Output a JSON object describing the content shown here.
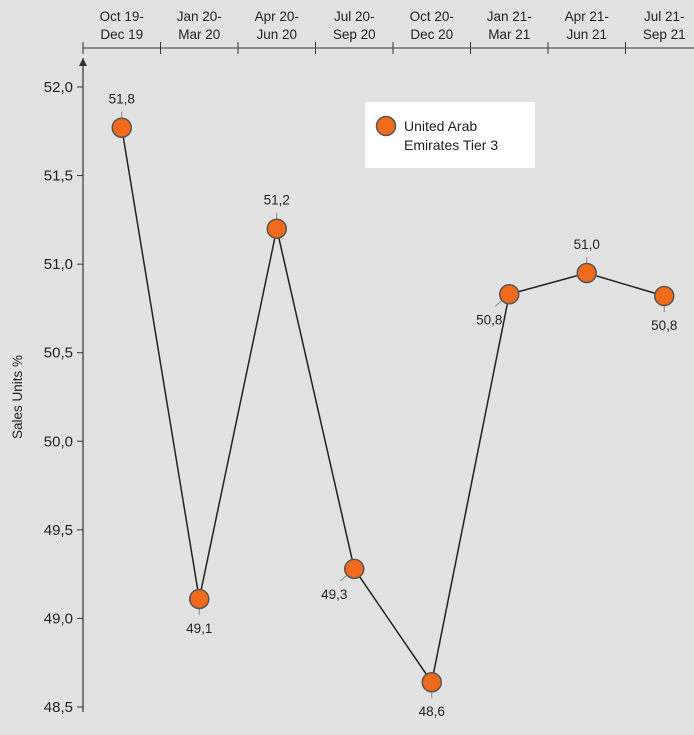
{
  "chart_data": {
    "type": "line",
    "categories": [
      [
        "Oct 19-",
        "Dec 19"
      ],
      [
        "Jan 20-",
        "Mar 20"
      ],
      [
        "Apr 20-",
        "Jun 20"
      ],
      [
        "Jul 20-",
        "Sep 20"
      ],
      [
        "Oct 20-",
        "Dec 20"
      ],
      [
        "Jan 21-",
        "Mar 21"
      ],
      [
        "Apr 21-",
        "Jun 21"
      ],
      [
        "Jul 21-",
        "Sep 21"
      ]
    ],
    "series": [
      {
        "name": "United Arab Emirates Tier 3",
        "legend_lines": [
          "United Arab",
          "Emirates Tier 3"
        ],
        "values": [
          51.77,
          49.11,
          51.2,
          49.28,
          48.64,
          50.83,
          50.95,
          50.82
        ],
        "labels": [
          "51,8",
          "49,1",
          "51,2",
          "49,3",
          "48,6",
          "50,8",
          "51,0",
          "50,8"
        ],
        "label_positions": [
          "above",
          "below",
          "above",
          "left",
          "below",
          "left",
          "above",
          "below"
        ]
      }
    ],
    "ylabel": "Sales Units %",
    "ylim": [
      48.5,
      52.0
    ],
    "yticks": [
      48.5,
      49.0,
      49.5,
      50.0,
      50.5,
      51.0,
      51.5,
      52.0
    ],
    "ytick_labels": [
      "48,5",
      "49,0",
      "49,5",
      "50,0",
      "50,5",
      "51,0",
      "51,5",
      "52,0"
    ],
    "x_axis_position": "top",
    "legend_position": "top-right",
    "grid": false,
    "colors": {
      "plot_background": "#e2e2e2",
      "marker_fill": "#f26a1b",
      "marker_stroke": "#555555",
      "line": "#222222",
      "legend_background": "#ffffff"
    }
  }
}
